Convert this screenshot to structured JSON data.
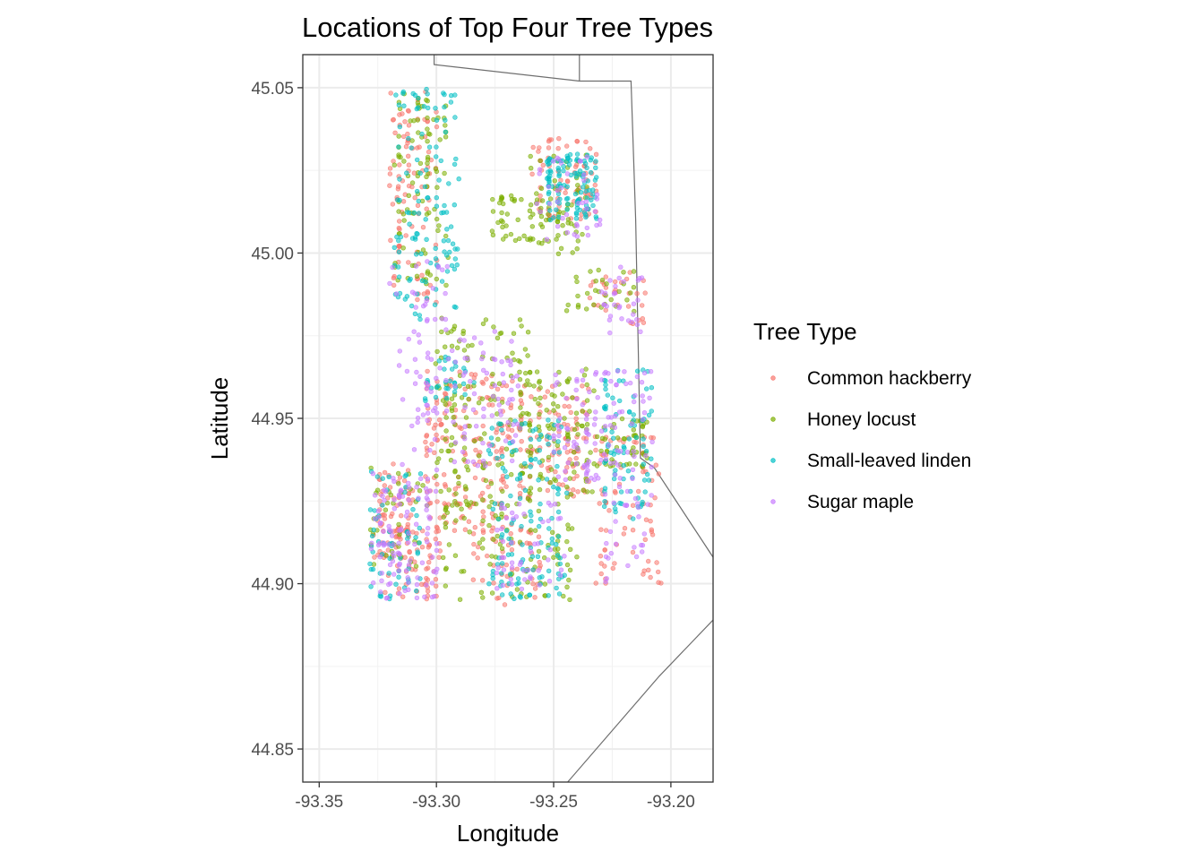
{
  "chart_data": {
    "type": "scatter",
    "title": "Locations of Top Four Tree Types",
    "xlabel": "Longitude",
    "ylabel": "Latitude",
    "xlim": [
      -93.357,
      -93.182
    ],
    "ylim": [
      44.84,
      45.06
    ],
    "x_ticks": [
      -93.35,
      -93.3,
      -93.25,
      -93.2
    ],
    "x_tick_labels": [
      "-93.35",
      "-93.30",
      "-93.25",
      "-93.20"
    ],
    "y_ticks": [
      44.85,
      44.9,
      44.95,
      45.0,
      45.05
    ],
    "y_tick_labels": [
      "44.85",
      "44.90",
      "44.95",
      "45.00",
      "45.05"
    ],
    "grid": true,
    "legend": {
      "title": "Tree Type",
      "placement": "right"
    },
    "series": [
      {
        "name": "Common hackberry",
        "color": "#F8766D"
      },
      {
        "name": "Honey locust",
        "color": "#7CAE00"
      },
      {
        "name": "Small-leaved linden",
        "color": "#00BFC4"
      },
      {
        "name": "Sugar maple",
        "color": "#C77CFF"
      }
    ],
    "boundary_lines": [
      [
        [
          -93.301,
          45.06
        ],
        [
          -93.301,
          45.057
        ],
        [
          -93.239,
          45.052
        ],
        [
          -93.217,
          45.052
        ],
        [
          -93.215,
          45.01
        ],
        [
          -93.213,
          44.938
        ],
        [
          -93.207,
          44.935
        ],
        [
          -93.182,
          44.908
        ]
      ],
      [
        [
          -93.239,
          45.06
        ],
        [
          -93.239,
          45.052
        ]
      ],
      [
        [
          -93.182,
          44.889
        ],
        [
          -93.205,
          44.872
        ],
        [
          -93.244,
          44.84
        ]
      ]
    ],
    "point_clusters": [
      {
        "series": 0,
        "lon": [
          -93.327,
          -93.31
        ],
        "lat": [
          44.905,
          44.935
        ],
        "n": 70
      },
      {
        "series": 0,
        "lon": [
          -93.322,
          -93.298
        ],
        "lat": [
          44.895,
          44.918
        ],
        "n": 60
      },
      {
        "series": 0,
        "lon": [
          -93.305,
          -93.268
        ],
        "lat": [
          44.915,
          44.965
        ],
        "n": 170
      },
      {
        "series": 0,
        "lon": [
          -93.265,
          -93.235
        ],
        "lat": [
          44.925,
          44.96
        ],
        "n": 110
      },
      {
        "series": 0,
        "lon": [
          -93.26,
          -93.232
        ],
        "lat": [
          45.01,
          45.035
        ],
        "n": 75
      },
      {
        "series": 0,
        "lon": [
          -93.32,
          -93.3
        ],
        "lat": [
          44.985,
          45.05
        ],
        "n": 95
      },
      {
        "series": 0,
        "lon": [
          -93.232,
          -93.205
        ],
        "lat": [
          44.9,
          44.945
        ],
        "n": 75
      },
      {
        "series": 0,
        "lon": [
          -93.285,
          -93.255
        ],
        "lat": [
          44.893,
          44.918
        ],
        "n": 55
      },
      {
        "series": 0,
        "lon": [
          -93.235,
          -93.21
        ],
        "lat": [
          44.978,
          44.995
        ],
        "n": 30
      },
      {
        "series": 1,
        "lon": [
          -93.318,
          -93.295
        ],
        "lat": [
          44.99,
          45.048
        ],
        "n": 90
      },
      {
        "series": 1,
        "lon": [
          -93.3,
          -93.26
        ],
        "lat": [
          44.92,
          44.98
        ],
        "n": 150
      },
      {
        "series": 1,
        "lon": [
          -93.262,
          -93.232
        ],
        "lat": [
          44.925,
          44.965
        ],
        "n": 100
      },
      {
        "series": 1,
        "lon": [
          -93.232,
          -93.21
        ],
        "lat": [
          44.935,
          44.95
        ],
        "n": 50
      },
      {
        "series": 1,
        "lon": [
          -93.275,
          -93.255
        ],
        "lat": [
          45.002,
          45.018
        ],
        "n": 40
      },
      {
        "series": 1,
        "lon": [
          -93.26,
          -93.235
        ],
        "lat": [
          45.0,
          45.03
        ],
        "n": 60
      },
      {
        "series": 1,
        "lon": [
          -93.3,
          -93.24
        ],
        "lat": [
          44.895,
          44.925
        ],
        "n": 90
      },
      {
        "series": 1,
        "lon": [
          -93.245,
          -93.215
        ],
        "lat": [
          44.982,
          44.995
        ],
        "n": 30
      },
      {
        "series": 1,
        "lon": [
          -93.328,
          -93.305
        ],
        "lat": [
          44.905,
          44.935
        ],
        "n": 40
      },
      {
        "series": 2,
        "lon": [
          -93.253,
          -93.232
        ],
        "lat": [
          45.01,
          45.03
        ],
        "n": 110
      },
      {
        "series": 2,
        "lon": [
          -93.318,
          -93.29
        ],
        "lat": [
          44.98,
          45.05
        ],
        "n": 120
      },
      {
        "series": 2,
        "lon": [
          -93.278,
          -93.245
        ],
        "lat": [
          44.895,
          44.95
        ],
        "n": 130
      },
      {
        "series": 2,
        "lon": [
          -93.23,
          -93.208
        ],
        "lat": [
          44.92,
          44.965
        ],
        "n": 80
      },
      {
        "series": 2,
        "lon": [
          -93.328,
          -93.305
        ],
        "lat": [
          44.895,
          44.935
        ],
        "n": 60
      },
      {
        "series": 2,
        "lon": [
          -93.305,
          -93.285
        ],
        "lat": [
          44.955,
          44.97
        ],
        "n": 30
      },
      {
        "series": 3,
        "lon": [
          -93.328,
          -93.3
        ],
        "lat": [
          44.895,
          44.935
        ],
        "n": 110
      },
      {
        "series": 3,
        "lon": [
          -93.32,
          -93.295
        ],
        "lat": [
          44.94,
          44.998
        ],
        "n": 60
      },
      {
        "series": 3,
        "lon": [
          -93.295,
          -93.265
        ],
        "lat": [
          44.935,
          44.975
        ],
        "n": 70
      },
      {
        "series": 3,
        "lon": [
          -93.25,
          -93.225
        ],
        "lat": [
          44.93,
          44.965
        ],
        "n": 70
      },
      {
        "series": 3,
        "lon": [
          -93.228,
          -93.208
        ],
        "lat": [
          44.9,
          44.965
        ],
        "n": 70
      },
      {
        "series": 3,
        "lon": [
          -93.275,
          -93.245
        ],
        "lat": [
          44.895,
          44.925
        ],
        "n": 50
      },
      {
        "series": 3,
        "lon": [
          -93.258,
          -93.23
        ],
        "lat": [
          45.005,
          45.03
        ],
        "n": 40
      },
      {
        "series": 3,
        "lon": [
          -93.23,
          -93.212
        ],
        "lat": [
          44.975,
          44.995
        ],
        "n": 30
      }
    ]
  }
}
